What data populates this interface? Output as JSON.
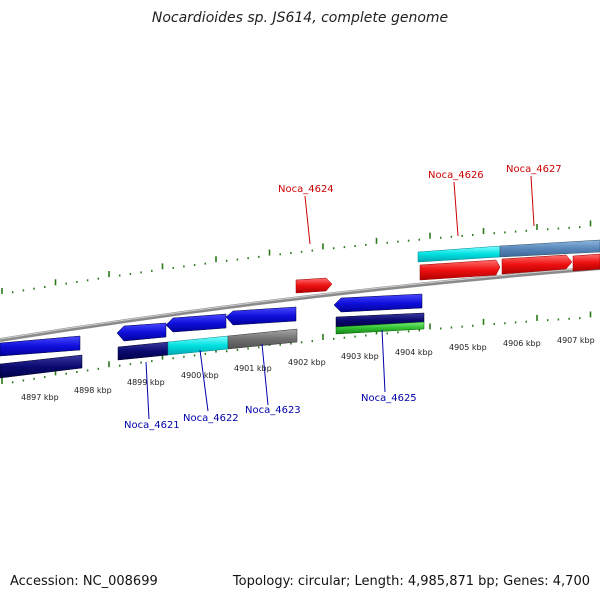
{
  "header": {
    "title": "Nocardioides sp. JS614, complete genome"
  },
  "footer": {
    "accession": "Accession: NC_008699",
    "summary": "Topology: circular; Length: 4,985,871 bp; Genes: 4,700"
  },
  "scale_labels": [
    "4897 kbp",
    "4898 kbp",
    "4899 kbp",
    "4900 kbp",
    "4901 kbp",
    "4902 kbp",
    "4903 kbp",
    "4904 kbp",
    "4905 kbp",
    "4906 kbp",
    "4907 kbp"
  ],
  "gene_labels": {
    "noca_4621": "Noca_4621",
    "noca_4622": "Noca_4622",
    "noca_4623": "Noca_4623",
    "noca_4624": "Noca_4624",
    "noca_4625": "Noca_4625",
    "noca_4626": "Noca_4626",
    "noca_4627": "Noca_4627"
  },
  "colors": {
    "forward_label": "#cc0000",
    "reverse_label": "#0000aa",
    "tick": "#2a7a1a",
    "backbone": "#888888"
  }
}
